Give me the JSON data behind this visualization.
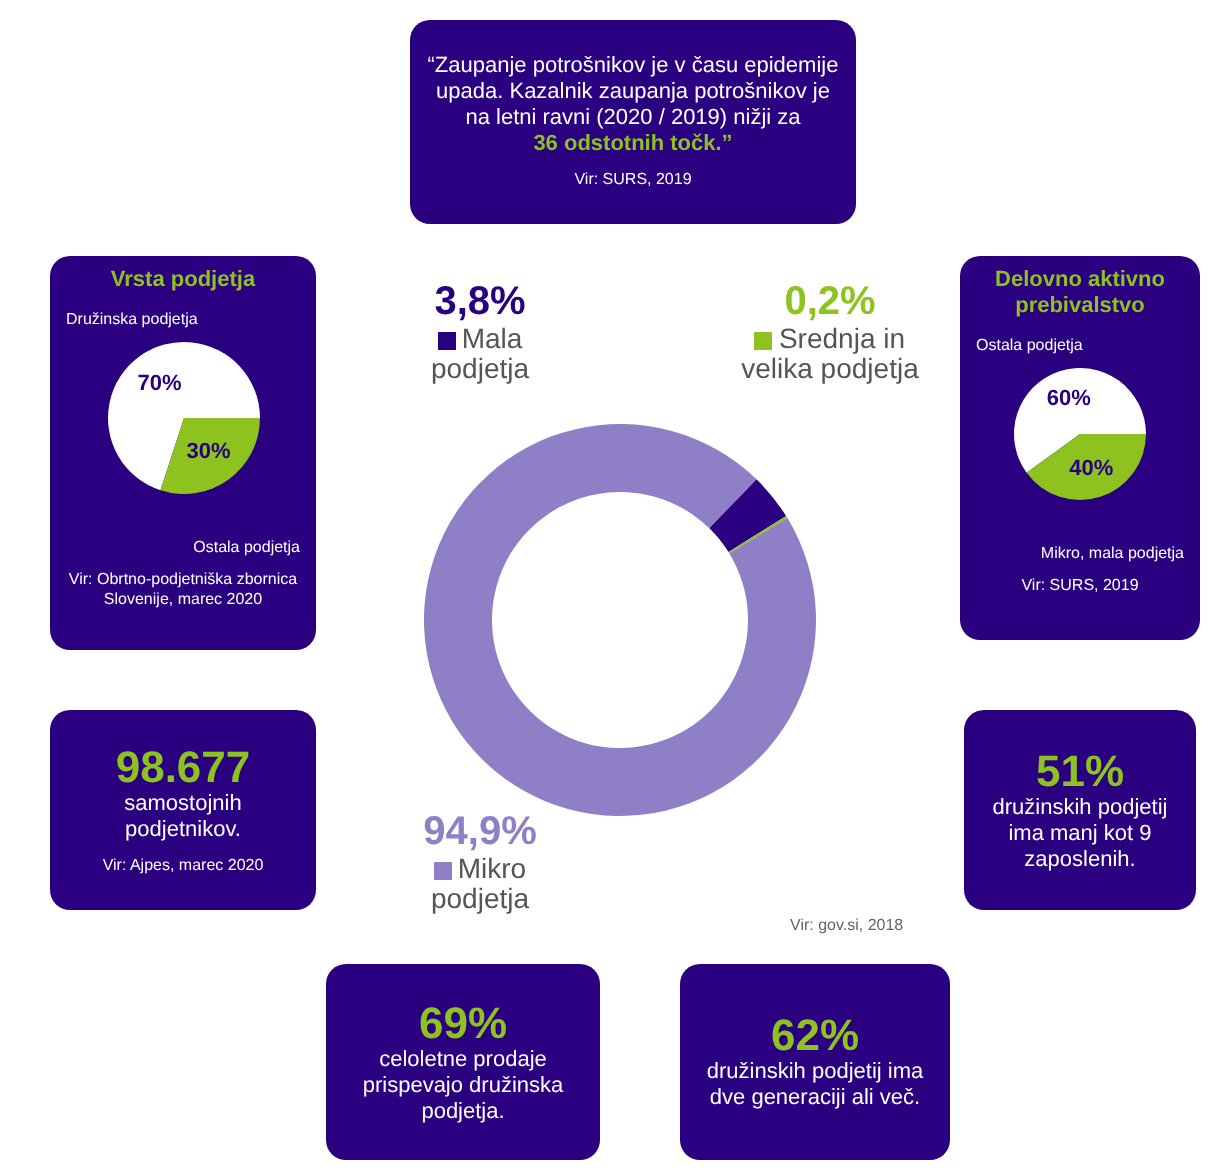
{
  "chart_data": [
    {
      "type": "other",
      "annotations": [
        "“Zaupanje potrošnikov je v času epidemije upada. Kazalnik zaupanja potrošnikov je na letni ravni (2020 / 2019) nižji za",
        "36 odstotnih točk.”",
        "Vir: SURS, 2019"
      ]
    },
    {
      "type": "pie",
      "title": "Vrsta podjetja",
      "categories": [
        "Družinska podjetja",
        "Ostala podjetja"
      ],
      "values": [
        70,
        30
      ],
      "colors": [
        "#ffffff",
        "#8dc21f"
      ],
      "value_labels": [
        "70%",
        "30%"
      ],
      "annotations": [
        "Vir: Obrtno-podjetniška zbornica Slovenije, marec 2020"
      ]
    },
    {
      "type": "donut",
      "categories": [
        "Mala podjetja",
        "Srednja in velika podjetja",
        "Mikro podjetja"
      ],
      "values": [
        3.8,
        0.2,
        94.9
      ],
      "colors": [
        "#2a0080",
        "#8dc21f",
        "#8f7fc6"
      ],
      "value_labels": [
        "3,8%",
        "0,2%",
        "94,9%"
      ],
      "legend": "bottom right",
      "annotations": [
        "Vir: gov.si, 2018"
      ]
    },
    {
      "type": "pie",
      "title": "Delovno aktivno prebivalstvo",
      "categories": [
        "Ostala podjetja",
        "Mikro, mala podjetja"
      ],
      "values": [
        60,
        40
      ],
      "colors": [
        "#ffffff",
        "#8dc21f"
      ],
      "value_labels": [
        "60%",
        "40%"
      ],
      "annotations": [
        "Vir: SURS, 2019"
      ]
    },
    {
      "type": "other",
      "title": "98.677",
      "annotations": [
        "samostojnih podjetnikov.",
        "Vir: Ajpes, marec 2020"
      ]
    },
    {
      "type": "other",
      "title": "51%",
      "annotations": [
        "družinskih podjetij ima manj kot 9 zaposlenih."
      ]
    },
    {
      "type": "other",
      "title": "69%",
      "annotations": [
        "celoletne prodaje prispevajo družinska podjetja."
      ]
    },
    {
      "type": "other",
      "title": "62%",
      "annotations": [
        "družinskih podjetij ima dve generaciji ali več."
      ]
    }
  ]
}
